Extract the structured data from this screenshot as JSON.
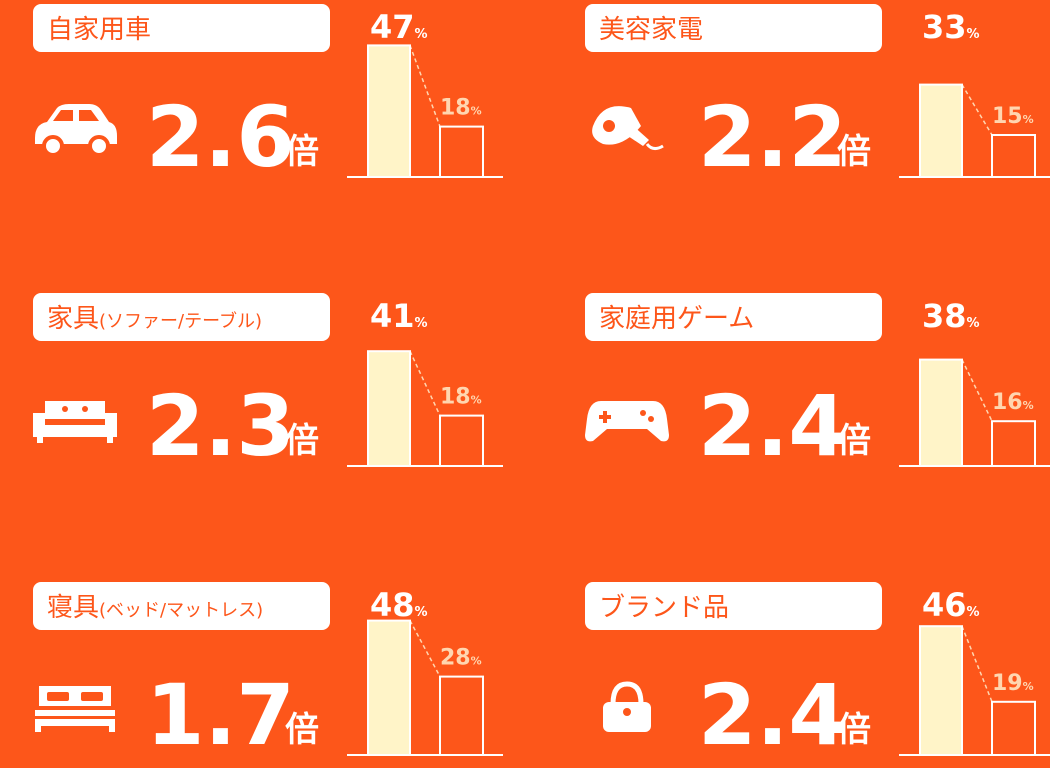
{
  "ratio_unit": "倍",
  "percent_unit": "%",
  "panels": [
    {
      "label": "自家用車",
      "ratio": 2.6,
      "values": [
        47,
        18
      ]
    },
    {
      "label": "美容家電",
      "ratio": 2.2,
      "values": [
        33,
        15
      ]
    },
    {
      "label": "家具",
      "sublabel": "(ソファー/テーブル)",
      "ratio": 2.3,
      "values": [
        41,
        18
      ]
    },
    {
      "label": "家庭用ゲーム",
      "ratio": 2.4,
      "values": [
        38,
        16
      ]
    },
    {
      "label": "寝具",
      "sublabel": "(ベッド/マットレス)",
      "ratio": 1.7,
      "values": [
        48,
        28
      ]
    },
    {
      "label": "ブランド品",
      "ratio": 2.4,
      "values": [
        46,
        19
      ]
    }
  ]
}
